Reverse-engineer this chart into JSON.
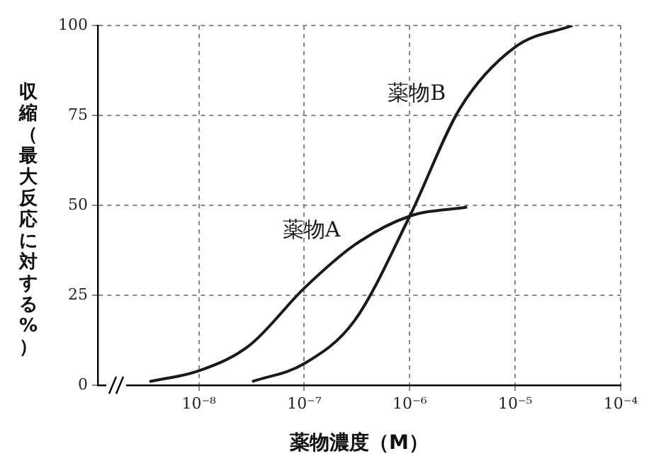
{
  "chart_data": {
    "type": "line",
    "xlabel": "薬物濃度（M）",
    "ylabel": "収縮（最大反応に対する%）",
    "series": [
      {
        "name": "薬物A",
        "color": "#1a1a1a",
        "x": [
          3.4e-09,
          1e-08,
          3e-08,
          1e-07,
          3e-07,
          1e-06,
          3.5e-06
        ],
        "values": [
          1,
          4,
          11,
          27,
          39,
          47,
          49.5
        ]
      },
      {
        "name": "薬物B",
        "color": "#1a1a1a",
        "x": [
          3.2e-08,
          1e-07,
          3e-07,
          1e-06,
          3e-06,
          1e-05,
          3.5e-05
        ],
        "values": [
          1,
          6,
          18,
          47,
          77,
          94,
          100
        ]
      }
    ],
    "log": "x",
    "xlim": [
      1.1e-09,
      0.0001
    ],
    "xticks": [
      {
        "value": 1e-08,
        "label": "10⁻⁸"
      },
      {
        "value": 1e-07,
        "label": "10⁻⁷"
      },
      {
        "value": 1e-06,
        "label": "10⁻⁶"
      },
      {
        "value": 1e-05,
        "label": "10⁻⁵"
      },
      {
        "value": 0.0001,
        "label": "10⁻⁴"
      }
    ],
    "ylim": [
      0,
      100
    ],
    "yticks": [
      0,
      25,
      50,
      75,
      100
    ],
    "grid": true,
    "legend": false,
    "marker": "none",
    "line_style": "solid"
  }
}
